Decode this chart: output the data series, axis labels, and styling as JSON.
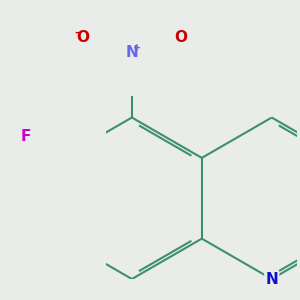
{
  "background_color": "#eaece9",
  "bond_color": "#3a9070",
  "bond_width": 1.5,
  "atom_colors": {
    "N_ring": "#1010cc",
    "N_nitro": "#6666ee",
    "O": "#cc0000",
    "F": "#cc00cc",
    "C": "#3a9070"
  },
  "font_size_atoms": 11,
  "font_size_super": 7,
  "figsize": [
    3.0,
    3.0
  ],
  "dpi": 100
}
